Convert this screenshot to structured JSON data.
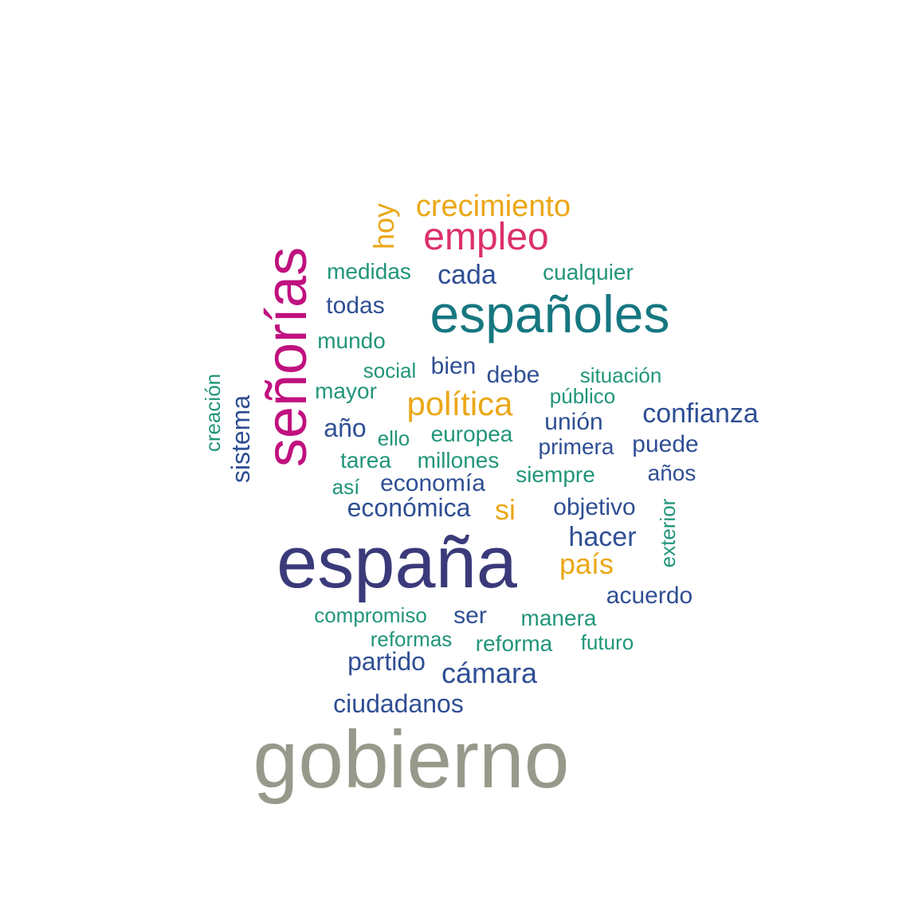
{
  "colors": {
    "gray": "#979A8A",
    "navy": "#3A3A7A",
    "magenta": "#C0117F",
    "teal": "#167780",
    "crimson": "#DB3069",
    "gold": "#EBA717",
    "blue": "#2F4F94",
    "green": "#21957A"
  },
  "words": [
    {
      "text": "gobierno",
      "color": "gray"
    },
    {
      "text": "españa",
      "color": "navy"
    },
    {
      "text": "señorías",
      "color": "magenta"
    },
    {
      "text": "españoles",
      "color": "teal"
    },
    {
      "text": "empleo",
      "color": "crimson"
    },
    {
      "text": "crecimiento",
      "color": "gold"
    },
    {
      "text": "hoy",
      "color": "gold"
    },
    {
      "text": "política",
      "color": "gold"
    },
    {
      "text": "país",
      "color": "gold"
    },
    {
      "text": "si",
      "color": "gold"
    },
    {
      "text": "cada",
      "color": "blue"
    },
    {
      "text": "todas",
      "color": "blue"
    },
    {
      "text": "bien",
      "color": "blue"
    },
    {
      "text": "debe",
      "color": "blue"
    },
    {
      "text": "confianza",
      "color": "blue"
    },
    {
      "text": "unión",
      "color": "blue"
    },
    {
      "text": "año",
      "color": "blue"
    },
    {
      "text": "sistema",
      "color": "blue"
    },
    {
      "text": "primera",
      "color": "blue"
    },
    {
      "text": "puede",
      "color": "blue"
    },
    {
      "text": "años",
      "color": "blue"
    },
    {
      "text": "economía",
      "color": "blue"
    },
    {
      "text": "económica",
      "color": "blue"
    },
    {
      "text": "objetivo",
      "color": "blue"
    },
    {
      "text": "hacer",
      "color": "blue"
    },
    {
      "text": "acuerdo",
      "color": "blue"
    },
    {
      "text": "ser",
      "color": "blue"
    },
    {
      "text": "partido",
      "color": "blue"
    },
    {
      "text": "cámara",
      "color": "blue"
    },
    {
      "text": "ciudadanos",
      "color": "blue"
    },
    {
      "text": "medidas",
      "color": "green"
    },
    {
      "text": "cualquier",
      "color": "green"
    },
    {
      "text": "mundo",
      "color": "green"
    },
    {
      "text": "social",
      "color": "green"
    },
    {
      "text": "situación",
      "color": "green"
    },
    {
      "text": "mayor",
      "color": "green"
    },
    {
      "text": "público",
      "color": "green"
    },
    {
      "text": "creación",
      "color": "green"
    },
    {
      "text": "ello",
      "color": "green"
    },
    {
      "text": "europea",
      "color": "green"
    },
    {
      "text": "tarea",
      "color": "green"
    },
    {
      "text": "millones",
      "color": "green"
    },
    {
      "text": "así",
      "color": "green"
    },
    {
      "text": "siempre",
      "color": "green"
    },
    {
      "text": "exterior",
      "color": "green"
    },
    {
      "text": "compromiso",
      "color": "green"
    },
    {
      "text": "manera",
      "color": "green"
    },
    {
      "text": "reformas",
      "color": "green"
    },
    {
      "text": "reforma",
      "color": "green"
    },
    {
      "text": "futuro",
      "color": "green"
    }
  ]
}
